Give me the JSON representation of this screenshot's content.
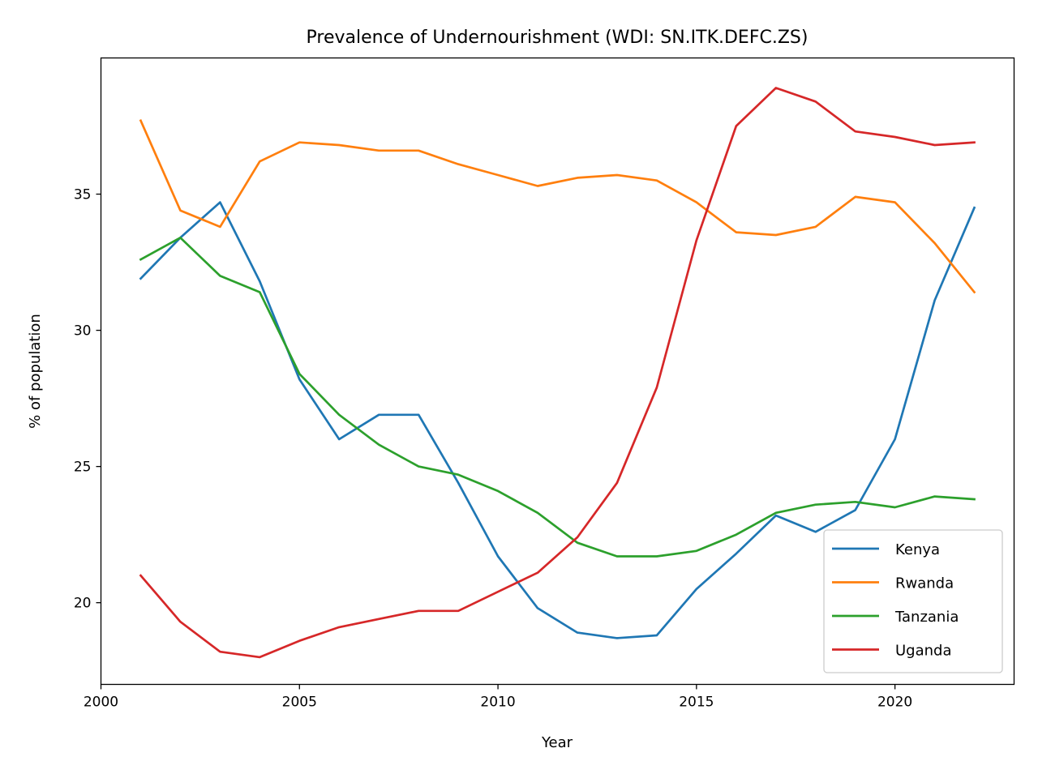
{
  "chart_data": {
    "type": "line",
    "title": "Prevalence of Undernourishment (WDI: SN.ITK.DEFC.ZS)",
    "xlabel": "Year",
    "ylabel": "% of population",
    "xlim": [
      2000,
      2023
    ],
    "ylim": [
      17,
      40
    ],
    "xticks": [
      2000,
      2005,
      2010,
      2015,
      2020
    ],
    "yticks": [
      20,
      25,
      30,
      35
    ],
    "grid": false,
    "legend_position": "bottom-right",
    "x": [
      2001,
      2002,
      2003,
      2004,
      2005,
      2006,
      2007,
      2008,
      2009,
      2010,
      2011,
      2012,
      2013,
      2014,
      2015,
      2016,
      2017,
      2018,
      2019,
      2020,
      2021,
      2022
    ],
    "series": [
      {
        "name": "Kenya",
        "color": "#1f77b4",
        "values": [
          31.9,
          33.4,
          34.7,
          31.8,
          28.2,
          26.0,
          26.9,
          26.9,
          24.4,
          21.7,
          19.8,
          18.9,
          18.7,
          18.8,
          20.5,
          21.8,
          23.2,
          22.6,
          23.4,
          26.0,
          31.1,
          34.5
        ]
      },
      {
        "name": "Rwanda",
        "color": "#ff7f0e",
        "values": [
          37.7,
          34.4,
          33.8,
          36.2,
          36.9,
          36.8,
          36.6,
          36.6,
          36.1,
          35.7,
          35.3,
          35.6,
          35.7,
          35.5,
          34.7,
          33.6,
          33.5,
          33.8,
          34.9,
          34.7,
          33.2,
          31.4
        ]
      },
      {
        "name": "Tanzania",
        "color": "#2ca02c",
        "values": [
          32.6,
          33.4,
          32.0,
          31.4,
          28.4,
          26.9,
          25.8,
          25.0,
          24.7,
          24.1,
          23.3,
          22.2,
          21.7,
          21.7,
          21.9,
          22.5,
          23.3,
          23.6,
          23.7,
          23.5,
          23.9,
          23.8
        ]
      },
      {
        "name": "Uganda",
        "color": "#d62728",
        "values": [
          21.0,
          19.3,
          18.2,
          18.0,
          18.6,
          19.1,
          19.4,
          19.7,
          19.7,
          20.4,
          21.1,
          22.4,
          24.4,
          27.9,
          33.3,
          37.5,
          38.9,
          38.4,
          37.3,
          37.1,
          36.8,
          36.9
        ]
      }
    ]
  }
}
